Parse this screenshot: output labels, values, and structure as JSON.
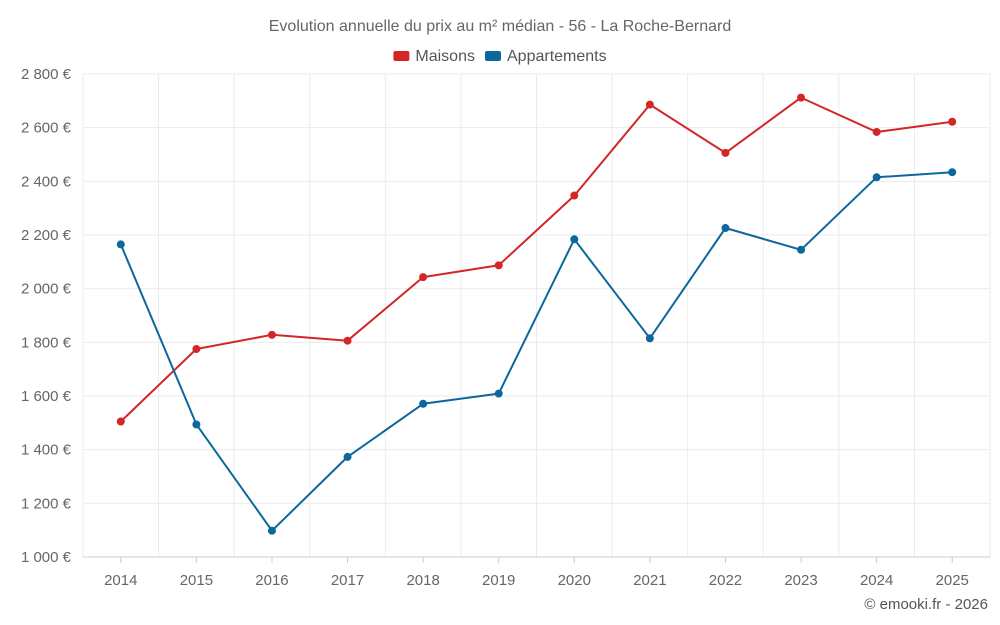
{
  "chart_data": {
    "type": "line",
    "title": "Evolution annuelle du prix au m² médian - 56 - La Roche-Bernard",
    "categories": [
      "2014",
      "2015",
      "2016",
      "2017",
      "2018",
      "2019",
      "2020",
      "2021",
      "2022",
      "2023",
      "2024",
      "2025"
    ],
    "series": [
      {
        "name": "Maisons",
        "color": "#d32626",
        "values": [
          1505,
          1775,
          1828,
          1806,
          2043,
          2087,
          2347,
          2686,
          2506,
          2712,
          2584,
          2622
        ]
      },
      {
        "name": "Appartements",
        "color": "#0b679c",
        "values": [
          2165,
          1494,
          1098,
          1373,
          1571,
          1609,
          2184,
          1815,
          2226,
          2145,
          2415,
          2434
        ]
      }
    ],
    "ylim": [
      1000,
      2800
    ],
    "yticks": [
      1000,
      1200,
      1400,
      1600,
      1800,
      2000,
      2200,
      2400,
      2600,
      2800
    ],
    "ytick_labels": [
      "1 000 €",
      "1 200 €",
      "1 400 €",
      "1 600 €",
      "1 800 €",
      "2 000 €",
      "2 200 €",
      "2 400 €",
      "2 600 €",
      "2 800 €"
    ],
    "xlabel": "",
    "ylabel": "",
    "grid": true,
    "legend_position": "top-center",
    "credit": "© emooki.fr - 2026"
  }
}
